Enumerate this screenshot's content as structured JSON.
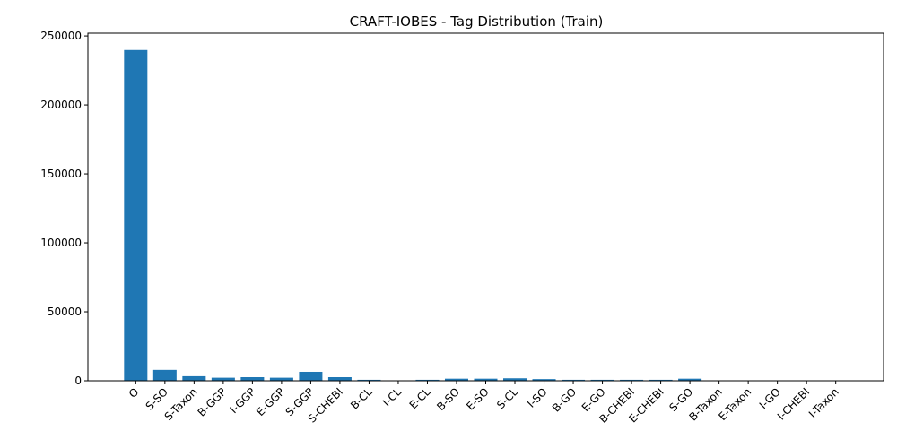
{
  "chart_data": {
    "type": "bar",
    "title": "CRAFT-IOBES - Tag Distribution (Train)",
    "xlabel": "",
    "ylabel": "",
    "categories": [
      "O",
      "S-SO",
      "S-Taxon",
      "B-GGP",
      "I-GGP",
      "E-GGP",
      "S-GGP",
      "S-CHEBI",
      "B-CL",
      "I-CL",
      "E-CL",
      "B-SO",
      "E-SO",
      "S-CL",
      "I-SO",
      "B-GO",
      "E-GO",
      "B-CHEBI",
      "E-CHEBI",
      "S-GO",
      "B-Taxon",
      "E-Taxon",
      "I-GO",
      "I-CHEBI",
      "I-Taxon"
    ],
    "values": [
      239800,
      7900,
      3300,
      2200,
      2600,
      2200,
      6500,
      2600,
      700,
      300,
      700,
      1500,
      1500,
      1800,
      1200,
      700,
      700,
      700,
      700,
      1500,
      250,
      250,
      200,
      150,
      60
    ],
    "ylim": [
      0,
      252000
    ],
    "yticks": [
      0,
      50000,
      100000,
      150000,
      200000,
      250000
    ],
    "bar_color": "#1f77b4",
    "grid": false
  }
}
